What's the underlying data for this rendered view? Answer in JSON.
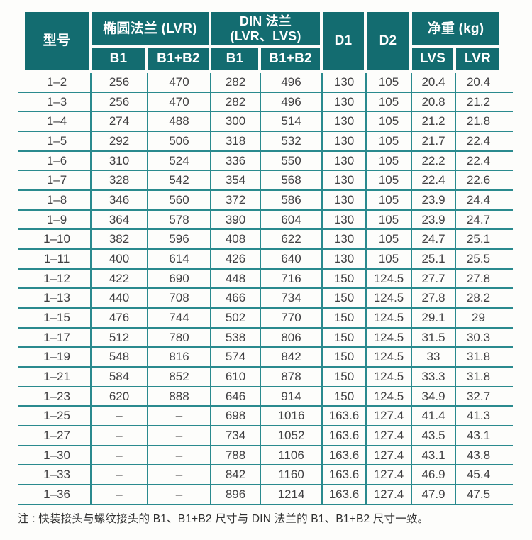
{
  "table": {
    "headers": {
      "model": "型号",
      "group_oval_flange": "椭圆法兰 (LVR)",
      "group_din_flange": "DIN 法兰\n(LVR、LVS)",
      "sub_b1_oval": "B1",
      "sub_b1b2_oval": "B1+B2",
      "sub_b1_din": "B1",
      "sub_b1b2_din": "B1+B2",
      "d1": "D1",
      "d2": "D2",
      "group_net_weight": "净重 (kg)",
      "sub_lvs": "LVS",
      "sub_lvr": "LVR"
    },
    "rows": [
      [
        "1–2",
        "256",
        "470",
        "282",
        "496",
        "130",
        "105",
        "20.4",
        "20.4"
      ],
      [
        "1–3",
        "256",
        "470",
        "282",
        "496",
        "130",
        "105",
        "20.8",
        "21.2"
      ],
      [
        "1–4",
        "274",
        "488",
        "300",
        "514",
        "130",
        "105",
        "21.2",
        "21.8"
      ],
      [
        "1–5",
        "292",
        "506",
        "318",
        "532",
        "130",
        "105",
        "21.7",
        "22.4"
      ],
      [
        "1–6",
        "310",
        "524",
        "336",
        "550",
        "130",
        "105",
        "22.2",
        "22.4"
      ],
      [
        "1–7",
        "328",
        "542",
        "354",
        "568",
        "130",
        "105",
        "22.4",
        "22.6"
      ],
      [
        "1–8",
        "346",
        "560",
        "372",
        "586",
        "130",
        "105",
        "23.9",
        "24.4"
      ],
      [
        "1–9",
        "364",
        "578",
        "390",
        "604",
        "130",
        "105",
        "23.9",
        "24.7"
      ],
      [
        "1–10",
        "382",
        "596",
        "408",
        "622",
        "130",
        "105",
        "24.7",
        "25.1"
      ],
      [
        "1–11",
        "400",
        "614",
        "426",
        "640",
        "130",
        "105",
        "25.1",
        "25.5"
      ],
      [
        "1–12",
        "422",
        "690",
        "448",
        "716",
        "150",
        "124.5",
        "27.7",
        "27.8"
      ],
      [
        "1–13",
        "440",
        "708",
        "466",
        "734",
        "150",
        "124.5",
        "27.8",
        "28.2"
      ],
      [
        "1–15",
        "476",
        "744",
        "502",
        "770",
        "150",
        "124.5",
        "29.1",
        "29"
      ],
      [
        "1–17",
        "512",
        "780",
        "538",
        "806",
        "150",
        "124.5",
        "31.5",
        "30.3"
      ],
      [
        "1–19",
        "548",
        "816",
        "574",
        "842",
        "150",
        "124.5",
        "33",
        "31.8"
      ],
      [
        "1–21",
        "584",
        "852",
        "610",
        "878",
        "150",
        "124.5",
        "33.3",
        "31.8"
      ],
      [
        "1–23",
        "620",
        "888",
        "646",
        "914",
        "150",
        "124.5",
        "34.9",
        "32.7"
      ],
      [
        "1–25",
        "–",
        "–",
        "698",
        "1016",
        "163.6",
        "127.4",
        "41.4",
        "41.3"
      ],
      [
        "1–27",
        "–",
        "–",
        "734",
        "1052",
        "163.6",
        "127.4",
        "43.5",
        "43.1"
      ],
      [
        "1–30",
        "–",
        "–",
        "788",
        "1106",
        "163.6",
        "127.4",
        "43.1",
        "43.8"
      ],
      [
        "1–33",
        "–",
        "–",
        "842",
        "1160",
        "163.6",
        "127.4",
        "46.9",
        "45.4"
      ],
      [
        "1–36",
        "–",
        "–",
        "896",
        "1214",
        "163.6",
        "127.4",
        "47.9",
        "47.5"
      ]
    ],
    "note": "注 : 快装接头与螺纹接头的 B1、B1+B2 尺寸与 DIN 法兰的 B1、B1+B2 尺寸一致。"
  },
  "colors": {
    "header_bg": "#136c70",
    "grid_line": "#2a8a8e",
    "data_text": "#414042",
    "header_text": "#ffffff"
  }
}
